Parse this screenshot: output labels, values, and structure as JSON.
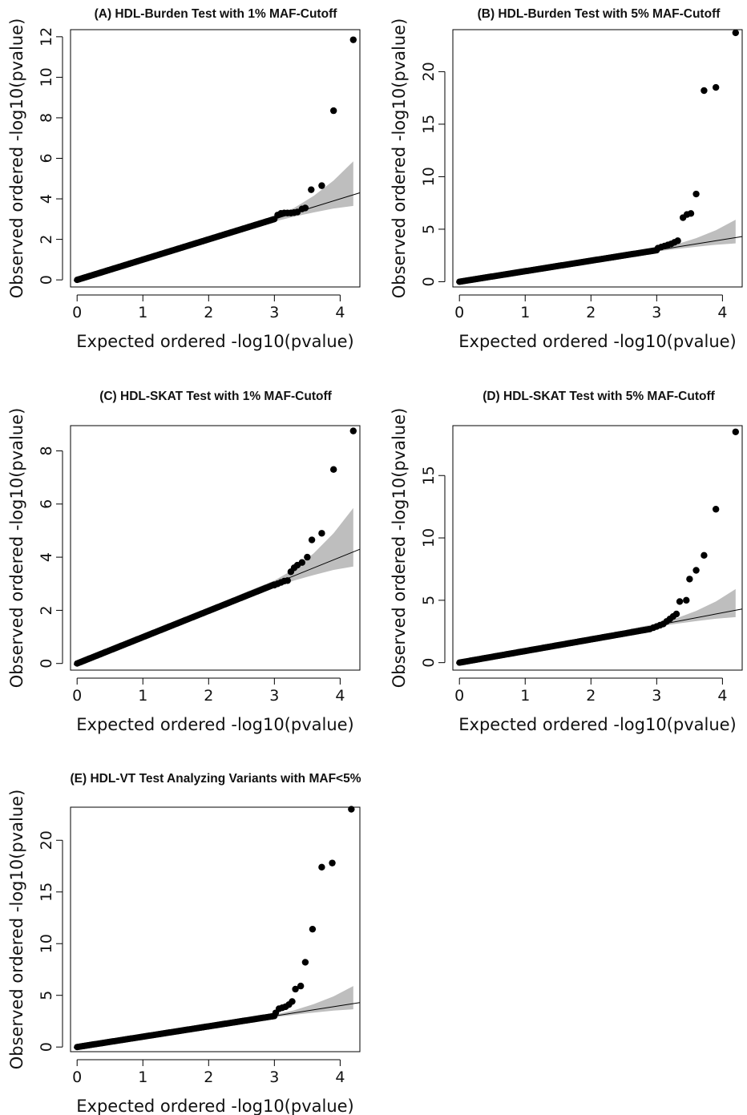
{
  "chart_data": [
    {
      "type": "scatter",
      "title": "(A) HDL-Burden Test with 1% MAF-Cutoff",
      "xlabel": "Expected ordered -log10(pvalue)",
      "ylabel": "Observed ordered -log10(pvalue)",
      "xlim": [
        -0.1,
        4.3
      ],
      "ylim": [
        -0.35,
        12.35
      ],
      "xticks": [
        "0",
        "1",
        "2",
        "3",
        "4"
      ],
      "yticks": [
        "0",
        "2",
        "4",
        "6",
        "8",
        "10",
        "12"
      ],
      "ytick_values": [
        0,
        2,
        4,
        6,
        8,
        10,
        12
      ],
      "reference_line": "y = x",
      "confidence_band": {
        "x": [
          3.0,
          3.3,
          3.6,
          3.9,
          4.2
        ],
        "lower": [
          2.88,
          3.12,
          3.33,
          3.52,
          3.65
        ],
        "upper": [
          3.12,
          3.55,
          4.15,
          4.9,
          5.85
        ]
      },
      "main_trend": {
        "x_start": 0.0,
        "x_end": 3.0,
        "slope": 1.0
      },
      "tail_points": {
        "x": [
          3.05,
          3.1,
          3.15,
          3.2,
          3.25,
          3.3,
          3.35,
          3.42,
          3.47,
          3.56,
          3.72,
          3.9,
          4.2
        ],
        "y": [
          3.2,
          3.28,
          3.3,
          3.3,
          3.3,
          3.32,
          3.35,
          3.5,
          3.55,
          4.45,
          4.65,
          8.35,
          11.85
        ]
      }
    },
    {
      "type": "scatter",
      "title": "(B) HDL-Burden Test with 5% MAF-Cutoff",
      "xlabel": "Expected ordered -log10(pvalue)",
      "ylabel": "Observed ordered -log10(pvalue)",
      "xlim": [
        -0.1,
        4.3
      ],
      "ylim": [
        -0.5,
        24.0
      ],
      "xticks": [
        "0",
        "1",
        "2",
        "3",
        "4"
      ],
      "yticks": [
        "0",
        "5",
        "10",
        "15",
        "20"
      ],
      "ytick_values": [
        0,
        5,
        10,
        15,
        20
      ],
      "reference_line": "y = x",
      "confidence_band": {
        "x": [
          3.0,
          3.3,
          3.6,
          3.9,
          4.2
        ],
        "lower": [
          2.88,
          3.12,
          3.33,
          3.52,
          3.65
        ],
        "upper": [
          3.12,
          3.55,
          4.15,
          4.9,
          5.9
        ]
      },
      "main_trend": {
        "x_start": 0.0,
        "x_end": 3.0,
        "slope": 1.0
      },
      "tail_points": {
        "x": [
          3.02,
          3.07,
          3.12,
          3.17,
          3.22,
          3.27,
          3.32,
          3.4,
          3.46,
          3.52,
          3.6,
          3.72,
          3.9,
          4.2
        ],
        "y": [
          3.2,
          3.3,
          3.4,
          3.5,
          3.6,
          3.75,
          3.9,
          6.1,
          6.4,
          6.5,
          8.35,
          18.2,
          18.5,
          23.7
        ]
      }
    },
    {
      "type": "scatter",
      "title": "(C) HDL-SKAT Test with 1% MAF-Cutoff",
      "xlabel": "Expected ordered -log10(pvalue)",
      "ylabel": "Observed ordered -log10(pvalue)",
      "xlim": [
        -0.1,
        4.3
      ],
      "ylim": [
        -0.25,
        8.95
      ],
      "xticks": [
        "0",
        "1",
        "2",
        "3",
        "4"
      ],
      "yticks": [
        "0",
        "2",
        "4",
        "6",
        "8"
      ],
      "ytick_values": [
        0,
        2,
        4,
        6,
        8
      ],
      "reference_line": "y = x",
      "confidence_band": {
        "x": [
          2.2,
          2.6,
          3.0,
          3.3,
          3.6,
          3.9,
          4.2
        ],
        "lower": [
          2.15,
          2.52,
          2.88,
          3.12,
          3.33,
          3.52,
          3.65
        ],
        "upper": [
          2.3,
          2.72,
          3.12,
          3.55,
          4.15,
          4.9,
          5.85
        ]
      },
      "main_trend": {
        "x_start": 0.0,
        "x_end": 3.0,
        "slope": 0.99
      },
      "tail_points": {
        "x": [
          3.0,
          3.05,
          3.1,
          3.15,
          3.2,
          3.25,
          3.3,
          3.35,
          3.42,
          3.5,
          3.57,
          3.72,
          3.9,
          4.2
        ],
        "y": [
          2.95,
          3.0,
          3.05,
          3.1,
          3.12,
          3.45,
          3.6,
          3.7,
          3.8,
          4.0,
          4.65,
          4.9,
          7.3,
          8.75
        ]
      }
    },
    {
      "type": "scatter",
      "title": "(D) HDL-SKAT Test with 5% MAF-Cutoff",
      "xlabel": "Expected ordered -log10(pvalue)",
      "ylabel": "Observed ordered -log10(pvalue)",
      "xlim": [
        -0.1,
        4.3
      ],
      "ylim": [
        -0.6,
        19.0
      ],
      "xticks": [
        "0",
        "1",
        "2",
        "3",
        "4"
      ],
      "yticks": [
        "0",
        "5",
        "10",
        "15"
      ],
      "ytick_values": [
        0,
        5,
        10,
        15
      ],
      "reference_line": "y = x",
      "confidence_band": {
        "x": [
          2.6,
          3.0,
          3.3,
          3.6,
          3.9,
          4.2
        ],
        "lower": [
          2.52,
          2.88,
          3.12,
          3.33,
          3.52,
          3.65
        ],
        "upper": [
          2.72,
          3.12,
          3.55,
          4.15,
          4.9,
          5.9
        ]
      },
      "main_trend": {
        "x_start": 0.0,
        "x_end": 2.9,
        "slope": 0.93
      },
      "tail_points": {
        "x": [
          2.95,
          3.0,
          3.05,
          3.1,
          3.15,
          3.2,
          3.25,
          3.3,
          3.35,
          3.45,
          3.5,
          3.6,
          3.72,
          3.9,
          4.2
        ],
        "y": [
          2.8,
          2.9,
          3.0,
          3.1,
          3.3,
          3.5,
          3.7,
          3.9,
          4.9,
          5.0,
          6.7,
          7.4,
          8.6,
          12.3,
          18.5
        ]
      }
    },
    {
      "type": "scatter",
      "title": "(E) HDL-VT Test Analyzing Variants with MAF<5%",
      "xlabel": "Expected ordered -log10(pvalue)",
      "ylabel": "Observed ordered -log10(pvalue)",
      "xlim": [
        -0.1,
        4.3
      ],
      "ylim": [
        -0.45,
        23.2
      ],
      "xticks": [
        "0",
        "1",
        "2",
        "3",
        "4"
      ],
      "yticks": [
        "0",
        "5",
        "10",
        "15",
        "20"
      ],
      "ytick_values": [
        0,
        5,
        10,
        15,
        20
      ],
      "reference_line": "y = x",
      "confidence_band": {
        "x": [
          3.0,
          3.3,
          3.6,
          3.9,
          4.2
        ],
        "lower": [
          2.88,
          3.12,
          3.33,
          3.52,
          3.65
        ],
        "upper": [
          3.12,
          3.55,
          4.15,
          4.9,
          5.9
        ]
      },
      "main_trend": {
        "x_start": 0.0,
        "x_end": 3.0,
        "slope": 1.0
      },
      "tail_points": {
        "x": [
          3.02,
          3.07,
          3.12,
          3.17,
          3.22,
          3.27,
          3.32,
          3.4,
          3.47,
          3.58,
          3.72,
          3.88,
          4.17
        ],
        "y": [
          3.3,
          3.7,
          3.8,
          3.9,
          4.1,
          4.4,
          5.6,
          5.9,
          8.2,
          11.4,
          17.4,
          17.8,
          23.0
        ]
      }
    }
  ]
}
